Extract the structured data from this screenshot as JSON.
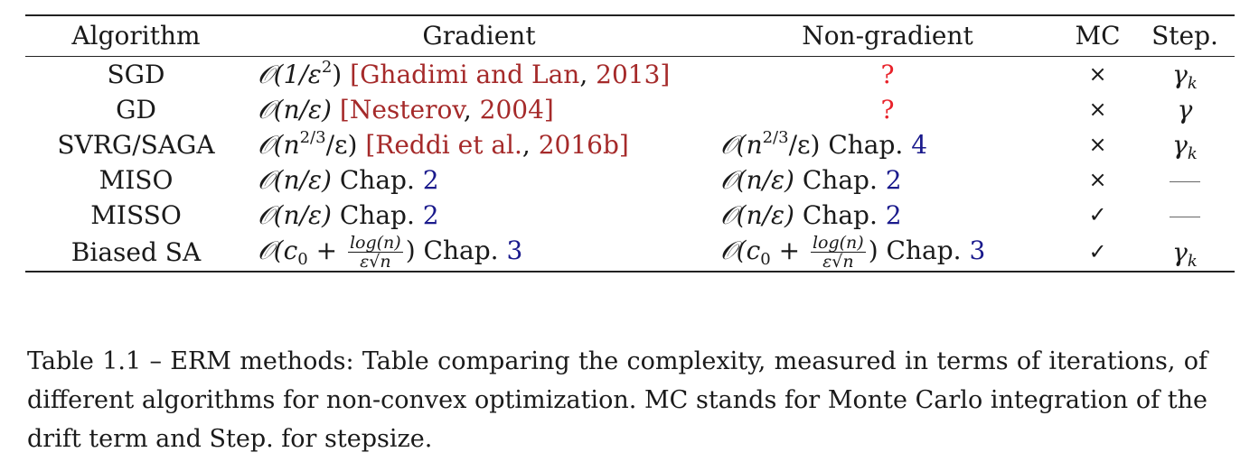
{
  "headers": {
    "algorithm": "Algorithm",
    "gradient": "Gradient",
    "non_gradient": "Non-gradient",
    "mc": "MC",
    "step": "Step."
  },
  "rows": [
    {
      "algorithm": "SGD",
      "gradient": {
        "math": "𝒪(1/ε",
        "sup": "2",
        "math_after": ")",
        "cite_open": " [",
        "cite_author": "Ghadimi and Lan",
        "cite_sep": ", ",
        "cite_year": "2013",
        "cite_close": "]"
      },
      "non_gradient": "?",
      "mc": "×",
      "step": {
        "base": "γ",
        "sub": "k"
      }
    },
    {
      "algorithm": "GD",
      "gradient": {
        "math": "𝒪(n/ε)",
        "cite_open": " [",
        "cite_author": "Nesterov",
        "cite_sep": ", ",
        "cite_year": "2004",
        "cite_close": "]"
      },
      "non_gradient": "?",
      "mc": "×",
      "step": {
        "base": "γ",
        "sub": ""
      }
    },
    {
      "algorithm": "SVRG/SAGA",
      "gradient": {
        "math": "𝒪(n",
        "sup": "2/3",
        "math_after": "/ε)",
        "cite_open": " [",
        "cite_author": "Reddi et al.",
        "cite_sep": ", ",
        "cite_year": "2016b",
        "cite_close": "]"
      },
      "non_gradient": {
        "math": "𝒪(n",
        "sup": "2/3",
        "math_after": "/ε)",
        "chap_label": " Chap. ",
        "chap": "4"
      },
      "mc": "×",
      "step": {
        "base": "γ",
        "sub": "k"
      }
    },
    {
      "algorithm": "MISO",
      "gradient": {
        "math": "𝒪(n/ε)",
        "chap_label": " Chap. ",
        "chap": "2"
      },
      "non_gradient": {
        "math": "𝒪(n/ε)",
        "chap_label": " Chap. ",
        "chap": "2"
      },
      "mc": "×",
      "step": "—"
    },
    {
      "algorithm": "MISSO",
      "gradient": {
        "math": "𝒪(n/ε)",
        "chap_label": " Chap. ",
        "chap": "2"
      },
      "non_gradient": {
        "math": "𝒪(n/ε)",
        "chap_label": " Chap. ",
        "chap": "2"
      },
      "mc": "✓",
      "step": "—"
    },
    {
      "algorithm": "Biased SA",
      "gradient": {
        "math_pre": "𝒪(c",
        "sub": "0",
        "plus": " + ",
        "frac_num": "log(n)",
        "frac_den": "ε√n",
        "math_post": ")",
        "chap_label": " Chap. ",
        "chap": "3"
      },
      "non_gradient": {
        "math_pre": "𝒪(c",
        "sub": "0",
        "plus": " + ",
        "frac_num": "log(n)",
        "frac_den": "ε√n",
        "math_post": ")",
        "chap_label": " Chap. ",
        "chap": "3"
      },
      "mc": "✓",
      "step": {
        "base": "γ",
        "sub": "k"
      }
    }
  ],
  "caption": "Table 1.1 – ERM methods: Table comparing the complexity, measured in terms of iterations, of different algorithms for non-convex optimization. MC stands for Monte Carlo integration of the drift term and Step. for stepsize.",
  "colors": {
    "citation": "#a52a2a",
    "reference": "#1a1a8c",
    "question": "#e8222a"
  }
}
